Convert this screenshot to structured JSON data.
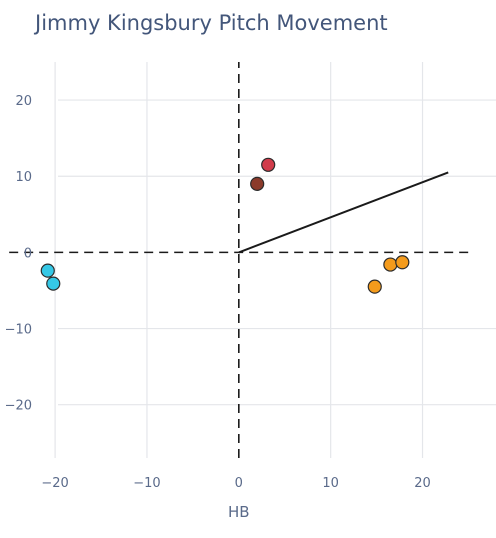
{
  "chart_data": {
    "type": "scatter",
    "title": "Jimmy Kingsbury Pitch Movement",
    "xlabel": "HB",
    "ylabel": "",
    "xlim": [
      -26,
      28
    ],
    "ylim": [
      -27,
      25
    ],
    "xticks": [
      -20,
      -10,
      0,
      10,
      20
    ],
    "yticks": [
      -20,
      -10,
      0,
      10,
      20
    ],
    "xtick_labels": [
      "−20",
      "−10",
      "0",
      "10",
      "20"
    ],
    "ytick_labels": [
      "−20",
      "−10",
      "0",
      "10",
      "20"
    ],
    "grid": true,
    "series": [
      {
        "color": "#d13c4b",
        "points": [
          {
            "x": 3.2,
            "y": 11.5
          }
        ]
      },
      {
        "color": "#8b3a2a",
        "points": [
          {
            "x": 2.0,
            "y": 9.0
          }
        ]
      },
      {
        "color": "#35c8e6",
        "points": [
          {
            "x": -20.8,
            "y": -2.4
          },
          {
            "x": -20.2,
            "y": -4.1
          }
        ]
      },
      {
        "color": "#f49b1c",
        "points": [
          {
            "x": 14.8,
            "y": -4.5
          },
          {
            "x": 16.5,
            "y": -1.6
          },
          {
            "x": 17.8,
            "y": -1.3
          }
        ]
      }
    ],
    "reference_lines": [
      {
        "kind": "dashed",
        "x1": -25,
        "y1": 0,
        "x2": 25,
        "y2": 0
      },
      {
        "kind": "dashed",
        "x1": 0,
        "y1": -27,
        "x2": 0,
        "y2": 25
      },
      {
        "kind": "solid",
        "x1": 0,
        "y1": 0,
        "x2": 22.8,
        "y2": 10.5
      }
    ],
    "colors": {
      "title": "#43567a",
      "tick": "#5a6a8a",
      "grid": "#e4e6ea",
      "line": "#1a1a1a",
      "marker_edge": "#2b2b2b"
    }
  }
}
